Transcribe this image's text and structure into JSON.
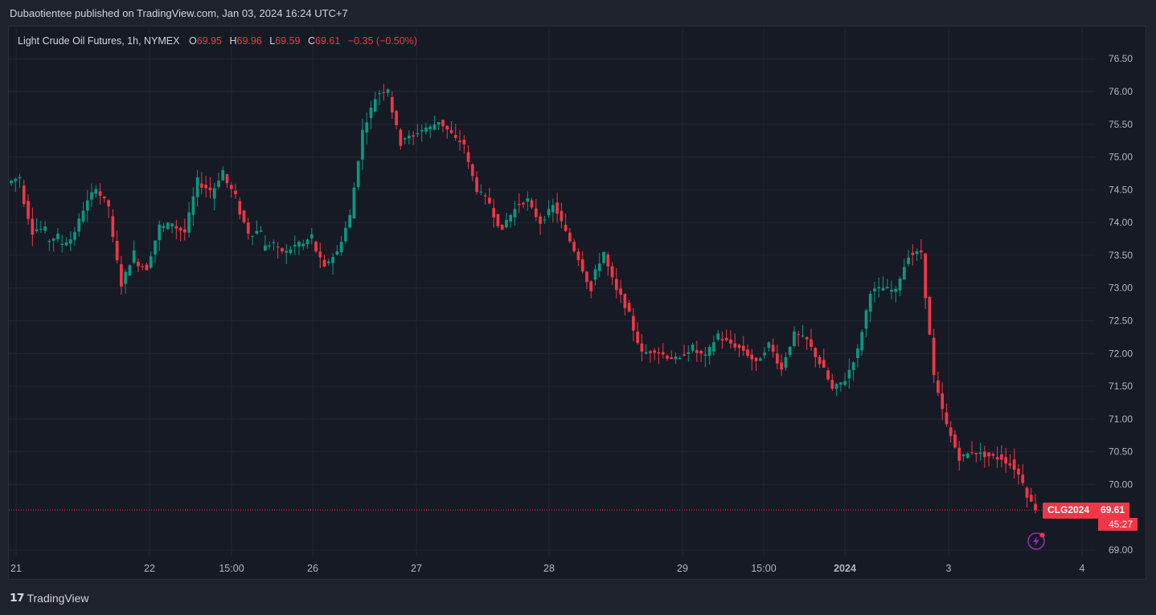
{
  "header": {
    "publisher_text": "Dubaotientee published on TradingView.com, Jan 03, 2024 16:24 UTC+7"
  },
  "legend": {
    "symbol": "Light Crude Oil Futures, 1h, NYMEX",
    "open_label": "O",
    "open": "69.95",
    "high_label": "H",
    "high": "69.96",
    "low_label": "L",
    "low": "69.59",
    "close_label": "C",
    "close": "69.61",
    "change": "−0.35 (−0.50%)"
  },
  "price_tag": {
    "symbol": "CLG2024",
    "price": "69.61",
    "countdown": "45:27"
  },
  "footer": {
    "brand": "TradingView"
  },
  "icons": {
    "flash": "flash-icon",
    "logo": "tradingview-logo-icon"
  },
  "colors": {
    "up": "#089981",
    "down": "#f23645",
    "background": "#161a25",
    "grid": "#232632"
  },
  "chart_data": {
    "type": "candlestick",
    "y_ticks": [
      "76.50",
      "76.00",
      "75.50",
      "75.00",
      "74.50",
      "74.00",
      "73.50",
      "73.00",
      "72.50",
      "72.00",
      "71.50",
      "71.00",
      "70.50",
      "70.00",
      "69.00"
    ],
    "ylim": [
      68.9,
      76.75
    ],
    "x_ticks": [
      {
        "label": "21",
        "bold": false
      },
      {
        "label": "22",
        "bold": false
      },
      {
        "label": "15:00",
        "bold": false
      },
      {
        "label": "26",
        "bold": false
      },
      {
        "label": "27",
        "bold": false
      },
      {
        "label": "28",
        "bold": false
      },
      {
        "label": "29",
        "bold": false
      },
      {
        "label": "15:00",
        "bold": false
      },
      {
        "label": "2024",
        "bold": true
      },
      {
        "label": "3",
        "bold": false
      },
      {
        "label": "4",
        "bold": false
      }
    ],
    "last_price": 69.61,
    "anchors": [
      [
        74.6,
        74.7
      ],
      [
        74.55,
        73.85
      ],
      [
        73.9,
        73.9
      ],
      [
        73.7,
        73.8
      ],
      [
        73.65,
        73.75
      ],
      [
        73.7,
        74.2
      ],
      [
        74.2,
        74.55
      ],
      [
        74.5,
        74.25
      ],
      [
        74.1,
        73.05
      ],
      [
        73.05,
        73.55
      ],
      [
        73.4,
        73.3
      ],
      [
        73.3,
        73.95
      ],
      [
        73.9,
        74.0
      ],
      [
        73.95,
        73.85
      ],
      [
        73.85,
        74.65
      ],
      [
        74.6,
        74.5
      ],
      [
        74.4,
        74.8
      ],
      [
        74.7,
        74.4
      ],
      [
        74.3,
        73.85
      ],
      [
        73.8,
        73.9
      ],
      [
        73.6,
        73.7
      ],
      [
        73.6,
        73.55
      ],
      [
        73.55,
        73.7
      ],
      [
        73.6,
        73.8
      ],
      [
        73.7,
        73.3
      ],
      [
        73.35,
        73.55
      ],
      [
        73.55,
        74.1
      ],
      [
        74.1,
        75.4
      ],
      [
        75.4,
        75.9
      ],
      [
        75.95,
        76.05
      ],
      [
        75.95,
        75.2
      ],
      [
        75.3,
        75.3
      ],
      [
        75.35,
        75.45
      ],
      [
        75.4,
        75.55
      ],
      [
        75.55,
        75.35
      ],
      [
        75.3,
        75.2
      ],
      [
        75.1,
        74.5
      ],
      [
        74.5,
        74.3
      ],
      [
        74.25,
        73.85
      ],
      [
        73.95,
        74.2
      ],
      [
        74.25,
        74.35
      ],
      [
        74.3,
        74.0
      ],
      [
        74.0,
        74.25
      ],
      [
        74.3,
        73.85
      ],
      [
        73.85,
        73.45
      ],
      [
        73.45,
        72.95
      ],
      [
        73.1,
        73.55
      ],
      [
        73.5,
        72.95
      ],
      [
        73.0,
        72.6
      ],
      [
        72.55,
        72.0
      ],
      [
        72.0,
        72.05
      ],
      [
        72.05,
        71.95
      ],
      [
        71.95,
        71.9
      ],
      [
        71.95,
        72.1
      ],
      [
        72.05,
        71.95
      ],
      [
        71.95,
        72.3
      ],
      [
        72.25,
        72.15
      ],
      [
        72.15,
        72.05
      ],
      [
        72.05,
        71.85
      ],
      [
        71.85,
        72.15
      ],
      [
        72.15,
        71.75
      ],
      [
        71.8,
        72.3
      ],
      [
        72.3,
        72.2
      ],
      [
        72.2,
        71.85
      ],
      [
        71.9,
        71.45
      ],
      [
        71.45,
        71.6
      ],
      [
        71.6,
        72.05
      ],
      [
        72.05,
        72.95
      ],
      [
        72.95,
        73.0
      ],
      [
        73.0,
        72.95
      ],
      [
        73.0,
        73.5
      ],
      [
        73.5,
        73.55
      ],
      [
        73.5,
        71.65
      ],
      [
        71.6,
        70.9
      ],
      [
        70.9,
        70.4
      ],
      [
        70.4,
        70.5
      ],
      [
        70.5,
        70.45
      ],
      [
        70.45,
        70.4
      ],
      [
        70.45,
        70.3
      ],
      [
        70.35,
        70.05
      ],
      [
        69.95,
        69.61
      ]
    ]
  }
}
